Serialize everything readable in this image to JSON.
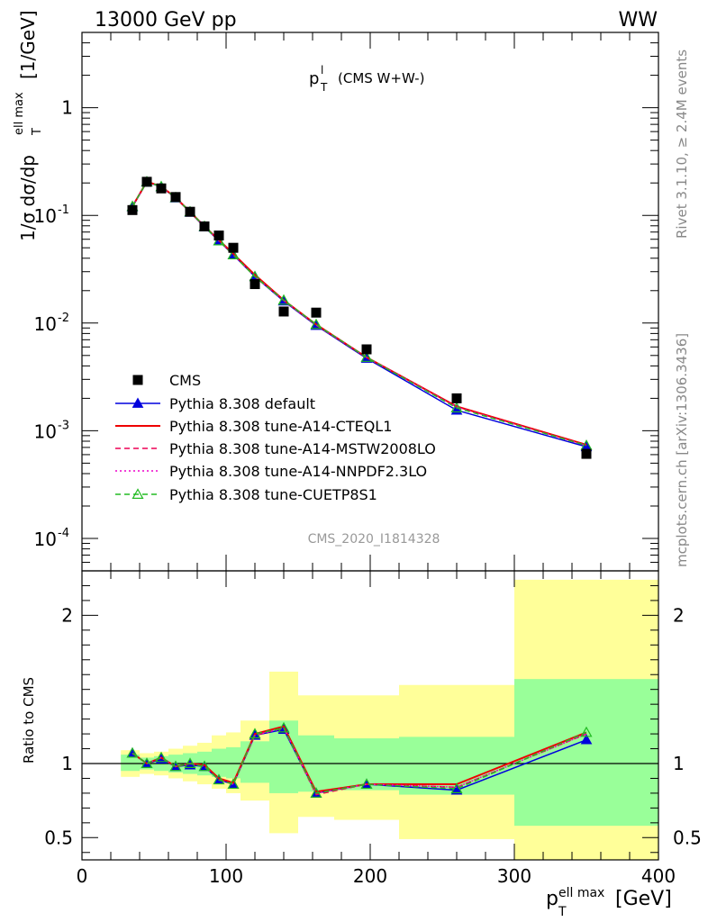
{
  "header": {
    "left": "13000 GeV pp",
    "right": "WW"
  },
  "plot_title": {
    "main": "p",
    "sup": "l",
    "sub": "T",
    "suffix": "(CMS W+W-)"
  },
  "analysis_label": "CMS_2020_I1814328",
  "side_labels": {
    "rivet": "Rivet 3.1.10, ≥ 2.4M events",
    "mcplots": "mcplots.cern.ch [arXiv:1306.3436]"
  },
  "y_axis_label": {
    "pre": "1/σ dσ/dp",
    "sup": "ell max",
    "sub": "T",
    "post": "[1/GeV]"
  },
  "ratio_axis_label": "Ratio to CMS",
  "x_axis_label": {
    "main": "p",
    "sup": "ell max",
    "sub": "T",
    "post": "[GeV]"
  },
  "colors": {
    "cms": "#000000",
    "default": "#0000dd",
    "cteql1": "#ee0000",
    "mstw": "#ee0055",
    "nnpdf": "#ee00cc",
    "cuetp8s1": "#22bb22",
    "band_outer": "#ffff99",
    "band_inner": "#99ff99"
  },
  "chart_data": [
    {
      "type": "scatter",
      "panel": "main",
      "yscale": "log",
      "ylim": [
        5e-05,
        5
      ],
      "xlim": [
        0,
        400
      ],
      "y_ticks": [
        "10^-4",
        "10^-3",
        "10^-2",
        "10^-1",
        "1"
      ],
      "legend_position": "bottom-left",
      "series": [
        {
          "name": "CMS",
          "key": "cms",
          "style": "square",
          "x": [
            35,
            45,
            55,
            65,
            75,
            85,
            95,
            105,
            120,
            140,
            162.5,
            197.5,
            260,
            350
          ],
          "y": [
            0.112,
            0.205,
            0.178,
            0.148,
            0.108,
            0.079,
            0.065,
            0.05,
            0.023,
            0.0128,
            0.0125,
            0.0057,
            0.002,
            0.00061
          ]
        },
        {
          "name": "Pythia 8.308 default",
          "key": "default",
          "style": "line-triangle",
          "x": [
            35,
            45,
            55,
            65,
            75,
            85,
            95,
            105,
            120,
            140,
            162.5,
            197.5,
            260,
            350
          ],
          "y": [
            0.12,
            0.204,
            0.184,
            0.145,
            0.107,
            0.078,
            0.058,
            0.043,
            0.027,
            0.016,
            0.0095,
            0.0047,
            0.00155,
            0.00071
          ]
        },
        {
          "name": "Pythia 8.308 tune-A14-CTEQL1",
          "key": "cteql1",
          "style": "line",
          "x": [
            35,
            45,
            55,
            65,
            75,
            85,
            95,
            105,
            120,
            140,
            162.5,
            197.5,
            260,
            350
          ],
          "y": [
            0.121,
            0.206,
            0.186,
            0.146,
            0.108,
            0.079,
            0.059,
            0.044,
            0.028,
            0.0163,
            0.0097,
            0.0048,
            0.00168,
            0.00074
          ]
        },
        {
          "name": "Pythia 8.308 tune-A14-MSTW2008LO",
          "key": "mstw",
          "style": "dashed",
          "x": [
            35,
            45,
            55,
            65,
            75,
            85,
            95,
            105,
            120,
            140,
            162.5,
            197.5,
            260,
            350
          ],
          "y": [
            0.121,
            0.205,
            0.185,
            0.146,
            0.108,
            0.079,
            0.058,
            0.043,
            0.027,
            0.0162,
            0.0096,
            0.0048,
            0.00165,
            0.00073
          ]
        },
        {
          "name": "Pythia 8.308 tune-A14-NNPDF2.3LO",
          "key": "nnpdf",
          "style": "dotted",
          "x": [
            35,
            45,
            55,
            65,
            75,
            85,
            95,
            105,
            120,
            140,
            162.5,
            197.5,
            260,
            350
          ],
          "y": [
            0.121,
            0.205,
            0.185,
            0.146,
            0.108,
            0.079,
            0.058,
            0.043,
            0.027,
            0.0162,
            0.0096,
            0.0048,
            0.00166,
            0.00073
          ]
        },
        {
          "name": "Pythia 8.308 tune-CUETP8S1",
          "key": "cuetp8s1",
          "style": "dashed-open-triangle",
          "x": [
            35,
            45,
            55,
            65,
            75,
            85,
            95,
            105,
            120,
            140,
            162.5,
            197.5,
            260,
            350
          ],
          "y": [
            0.121,
            0.205,
            0.185,
            0.146,
            0.108,
            0.079,
            0.058,
            0.043,
            0.027,
            0.0163,
            0.0097,
            0.0048,
            0.00163,
            0.00073
          ]
        }
      ]
    },
    {
      "type": "line",
      "panel": "ratio",
      "ylim": [
        0.35,
        2.3
      ],
      "xlim": [
        0,
        400
      ],
      "x_ticks": [
        0,
        100,
        200,
        300,
        400
      ],
      "y_ticks": [
        0.5,
        1,
        2
      ],
      "bins": [
        {
          "lo": 27,
          "hi": 40,
          "inner": [
            0.95,
            1.06
          ],
          "outer": [
            0.91,
            1.09
          ]
        },
        {
          "lo": 40,
          "hi": 50,
          "inner": [
            0.96,
            1.04
          ],
          "outer": [
            0.93,
            1.07
          ]
        },
        {
          "lo": 50,
          "hi": 60,
          "inner": [
            0.95,
            1.05
          ],
          "outer": [
            0.92,
            1.08
          ]
        },
        {
          "lo": 60,
          "hi": 70,
          "inner": [
            0.94,
            1.06
          ],
          "outer": [
            0.9,
            1.1
          ]
        },
        {
          "lo": 70,
          "hi": 80,
          "inner": [
            0.93,
            1.07
          ],
          "outer": [
            0.88,
            1.12
          ]
        },
        {
          "lo": 80,
          "hi": 90,
          "inner": [
            0.92,
            1.08
          ],
          "outer": [
            0.86,
            1.14
          ]
        },
        {
          "lo": 90,
          "hi": 100,
          "inner": [
            0.91,
            1.1
          ],
          "outer": [
            0.83,
            1.19
          ]
        },
        {
          "lo": 100,
          "hi": 110,
          "inner": [
            0.9,
            1.11
          ],
          "outer": [
            0.8,
            1.21
          ]
        },
        {
          "lo": 110,
          "hi": 130,
          "inner": [
            0.87,
            1.15
          ],
          "outer": [
            0.75,
            1.29
          ]
        },
        {
          "lo": 130,
          "hi": 150,
          "inner": [
            0.8,
            1.29
          ],
          "outer": [
            0.53,
            1.62
          ]
        },
        {
          "lo": 150,
          "hi": 175,
          "inner": [
            0.81,
            1.19
          ],
          "outer": [
            0.64,
            1.46
          ]
        },
        {
          "lo": 175,
          "hi": 220,
          "inner": [
            0.82,
            1.17
          ],
          "outer": [
            0.62,
            1.46
          ]
        },
        {
          "lo": 220,
          "hi": 300,
          "inner": [
            0.79,
            1.18
          ],
          "outer": [
            0.49,
            1.53
          ]
        },
        {
          "lo": 300,
          "hi": 400,
          "inner": [
            0.58,
            1.57
          ],
          "outer": [
            0.34,
            2.24
          ]
        }
      ],
      "series": [
        {
          "name": "Pythia 8.308 default",
          "key": "default",
          "x": [
            35,
            45,
            55,
            65,
            75,
            85,
            95,
            105,
            120,
            140,
            162.5,
            197.5,
            260,
            350
          ],
          "y": [
            1.07,
            1.0,
            1.03,
            0.98,
            0.99,
            0.98,
            0.89,
            0.86,
            1.19,
            1.23,
            0.8,
            0.86,
            0.82,
            1.16
          ]
        },
        {
          "name": "Pythia 8.308 tune-A14-CTEQL1",
          "key": "cteql1",
          "x": [
            35,
            45,
            55,
            65,
            75,
            85,
            95,
            105,
            120,
            140,
            162.5,
            197.5,
            260,
            350
          ],
          "y": [
            1.07,
            1.0,
            1.04,
            0.98,
            1.0,
            0.99,
            0.9,
            0.87,
            1.2,
            1.25,
            0.81,
            0.86,
            0.86,
            1.21
          ]
        },
        {
          "name": "Pythia 8.308 tune-A14-MSTW2008LO",
          "key": "mstw",
          "x": [
            35,
            45,
            55,
            65,
            75,
            85,
            95,
            105,
            120,
            140,
            162.5,
            197.5,
            260,
            350
          ],
          "y": [
            1.07,
            1.0,
            1.04,
            0.98,
            1.0,
            0.98,
            0.89,
            0.86,
            1.19,
            1.24,
            0.79,
            0.86,
            0.84,
            1.2
          ]
        },
        {
          "name": "Pythia 8.308 tune-A14-NNPDF2.3LO",
          "key": "nnpdf",
          "x": [
            35,
            45,
            55,
            65,
            75,
            85,
            95,
            105,
            120,
            140,
            162.5,
            197.5,
            260,
            350
          ],
          "y": [
            1.07,
            1.0,
            1.04,
            0.98,
            1.0,
            0.98,
            0.89,
            0.86,
            1.19,
            1.24,
            0.8,
            0.86,
            0.84,
            1.2
          ]
        },
        {
          "name": "Pythia 8.308 tune-CUETP8S1",
          "key": "cuetp8s1",
          "x": [
            35,
            45,
            55,
            65,
            75,
            85,
            95,
            105,
            120,
            140,
            162.5,
            197.5,
            260,
            350
          ],
          "y": [
            1.07,
            1.0,
            1.04,
            0.98,
            1.0,
            0.98,
            0.89,
            0.86,
            1.2,
            1.24,
            0.8,
            0.86,
            0.83,
            1.21
          ]
        }
      ]
    }
  ]
}
